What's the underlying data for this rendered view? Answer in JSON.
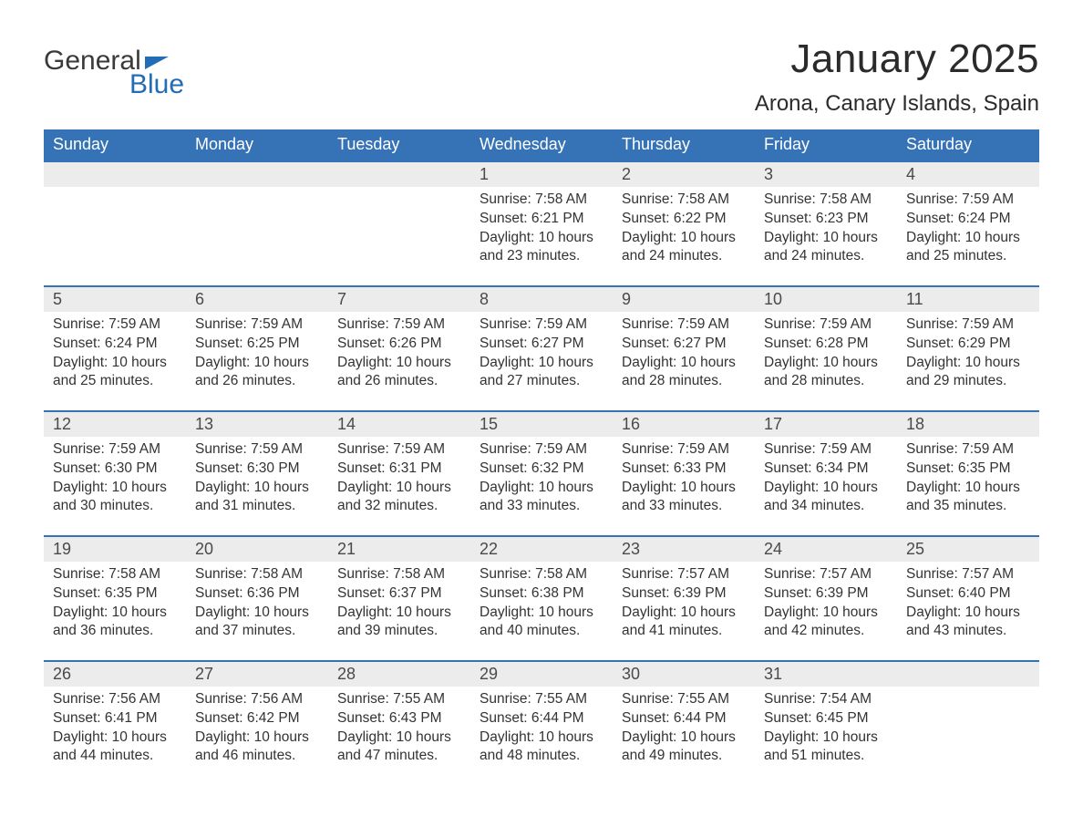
{
  "logo": {
    "text1": "General",
    "text2": "Blue",
    "flag_color": "#226db5",
    "text_color_gray": "#3a3a3a",
    "text_color_blue": "#226db5"
  },
  "title": "January 2025",
  "location": "Arona, Canary Islands, Spain",
  "colors": {
    "header_bg": "#3573b6",
    "header_text": "#ffffff",
    "daynum_bg": "#ececec",
    "week_border": "#3573b6",
    "body_text": "#333333",
    "page_bg": "#ffffff"
  },
  "day_labels": [
    "Sunday",
    "Monday",
    "Tuesday",
    "Wednesday",
    "Thursday",
    "Friday",
    "Saturday"
  ],
  "weeks": [
    [
      null,
      null,
      null,
      {
        "n": "1",
        "sr": "7:58 AM",
        "ss": "6:21 PM",
        "dl": "10 hours and 23 minutes."
      },
      {
        "n": "2",
        "sr": "7:58 AM",
        "ss": "6:22 PM",
        "dl": "10 hours and 24 minutes."
      },
      {
        "n": "3",
        "sr": "7:58 AM",
        "ss": "6:23 PM",
        "dl": "10 hours and 24 minutes."
      },
      {
        "n": "4",
        "sr": "7:59 AM",
        "ss": "6:24 PM",
        "dl": "10 hours and 25 minutes."
      }
    ],
    [
      {
        "n": "5",
        "sr": "7:59 AM",
        "ss": "6:24 PM",
        "dl": "10 hours and 25 minutes."
      },
      {
        "n": "6",
        "sr": "7:59 AM",
        "ss": "6:25 PM",
        "dl": "10 hours and 26 minutes."
      },
      {
        "n": "7",
        "sr": "7:59 AM",
        "ss": "6:26 PM",
        "dl": "10 hours and 26 minutes."
      },
      {
        "n": "8",
        "sr": "7:59 AM",
        "ss": "6:27 PM",
        "dl": "10 hours and 27 minutes."
      },
      {
        "n": "9",
        "sr": "7:59 AM",
        "ss": "6:27 PM",
        "dl": "10 hours and 28 minutes."
      },
      {
        "n": "10",
        "sr": "7:59 AM",
        "ss": "6:28 PM",
        "dl": "10 hours and 28 minutes."
      },
      {
        "n": "11",
        "sr": "7:59 AM",
        "ss": "6:29 PM",
        "dl": "10 hours and 29 minutes."
      }
    ],
    [
      {
        "n": "12",
        "sr": "7:59 AM",
        "ss": "6:30 PM",
        "dl": "10 hours and 30 minutes."
      },
      {
        "n": "13",
        "sr": "7:59 AM",
        "ss": "6:30 PM",
        "dl": "10 hours and 31 minutes."
      },
      {
        "n": "14",
        "sr": "7:59 AM",
        "ss": "6:31 PM",
        "dl": "10 hours and 32 minutes."
      },
      {
        "n": "15",
        "sr": "7:59 AM",
        "ss": "6:32 PM",
        "dl": "10 hours and 33 minutes."
      },
      {
        "n": "16",
        "sr": "7:59 AM",
        "ss": "6:33 PM",
        "dl": "10 hours and 33 minutes."
      },
      {
        "n": "17",
        "sr": "7:59 AM",
        "ss": "6:34 PM",
        "dl": "10 hours and 34 minutes."
      },
      {
        "n": "18",
        "sr": "7:59 AM",
        "ss": "6:35 PM",
        "dl": "10 hours and 35 minutes."
      }
    ],
    [
      {
        "n": "19",
        "sr": "7:58 AM",
        "ss": "6:35 PM",
        "dl": "10 hours and 36 minutes."
      },
      {
        "n": "20",
        "sr": "7:58 AM",
        "ss": "6:36 PM",
        "dl": "10 hours and 37 minutes."
      },
      {
        "n": "21",
        "sr": "7:58 AM",
        "ss": "6:37 PM",
        "dl": "10 hours and 39 minutes."
      },
      {
        "n": "22",
        "sr": "7:58 AM",
        "ss": "6:38 PM",
        "dl": "10 hours and 40 minutes."
      },
      {
        "n": "23",
        "sr": "7:57 AM",
        "ss": "6:39 PM",
        "dl": "10 hours and 41 minutes."
      },
      {
        "n": "24",
        "sr": "7:57 AM",
        "ss": "6:39 PM",
        "dl": "10 hours and 42 minutes."
      },
      {
        "n": "25",
        "sr": "7:57 AM",
        "ss": "6:40 PM",
        "dl": "10 hours and 43 minutes."
      }
    ],
    [
      {
        "n": "26",
        "sr": "7:56 AM",
        "ss": "6:41 PM",
        "dl": "10 hours and 44 minutes."
      },
      {
        "n": "27",
        "sr": "7:56 AM",
        "ss": "6:42 PM",
        "dl": "10 hours and 46 minutes."
      },
      {
        "n": "28",
        "sr": "7:55 AM",
        "ss": "6:43 PM",
        "dl": "10 hours and 47 minutes."
      },
      {
        "n": "29",
        "sr": "7:55 AM",
        "ss": "6:44 PM",
        "dl": "10 hours and 48 minutes."
      },
      {
        "n": "30",
        "sr": "7:55 AM",
        "ss": "6:44 PM",
        "dl": "10 hours and 49 minutes."
      },
      {
        "n": "31",
        "sr": "7:54 AM",
        "ss": "6:45 PM",
        "dl": "10 hours and 51 minutes."
      },
      null
    ]
  ],
  "labels": {
    "sunrise": "Sunrise: ",
    "sunset": "Sunset: ",
    "daylight": "Daylight: "
  }
}
